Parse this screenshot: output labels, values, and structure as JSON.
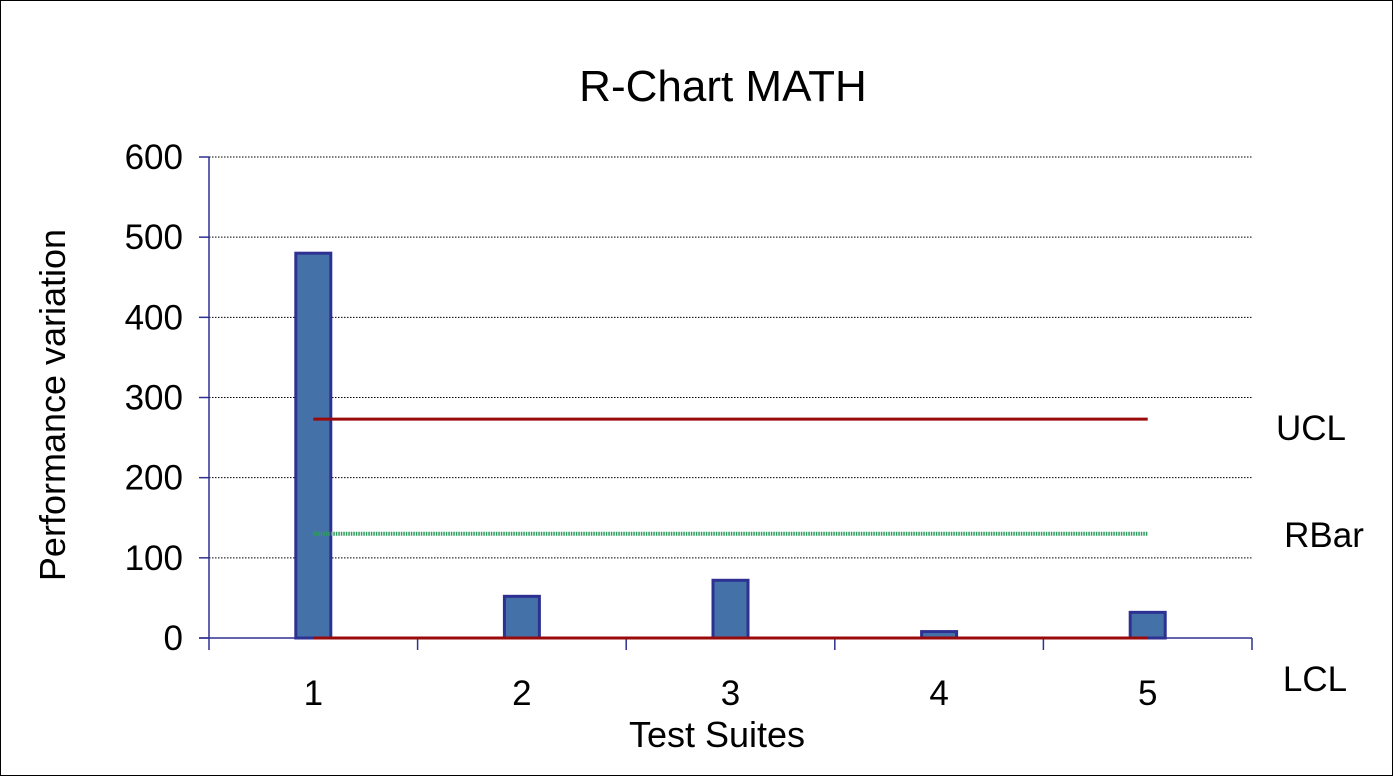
{
  "chart_data": {
    "type": "bar",
    "title": "R-Chart MATH",
    "xlabel": "Test Suites",
    "ylabel": "Performance variation",
    "categories": [
      "1",
      "2",
      "3",
      "4",
      "5"
    ],
    "series": [
      {
        "values": [
          480,
          52,
          72,
          8,
          32
        ],
        "color": "#4472A8",
        "border_color": "#2E3192"
      }
    ],
    "ylim": [
      0,
      600
    ],
    "yticks": [
      0,
      100,
      200,
      300,
      400,
      500,
      600
    ],
    "ytick_labels": [
      "0",
      "100",
      "200",
      "300",
      "400",
      "500",
      "600"
    ],
    "grid": true,
    "grid_style": "dotted",
    "reference_lines": [
      {
        "name": "UCL",
        "label": "UCL",
        "value": 273,
        "color": "#9B0A0A",
        "style": "solid"
      },
      {
        "name": "RBar",
        "label": "RBar",
        "value": 130,
        "color": "#2E9B5F",
        "style": "dotted"
      },
      {
        "name": "LCL",
        "label": "LCL",
        "value": 0,
        "color": "#9B0A0A",
        "style": "solid"
      }
    ]
  }
}
